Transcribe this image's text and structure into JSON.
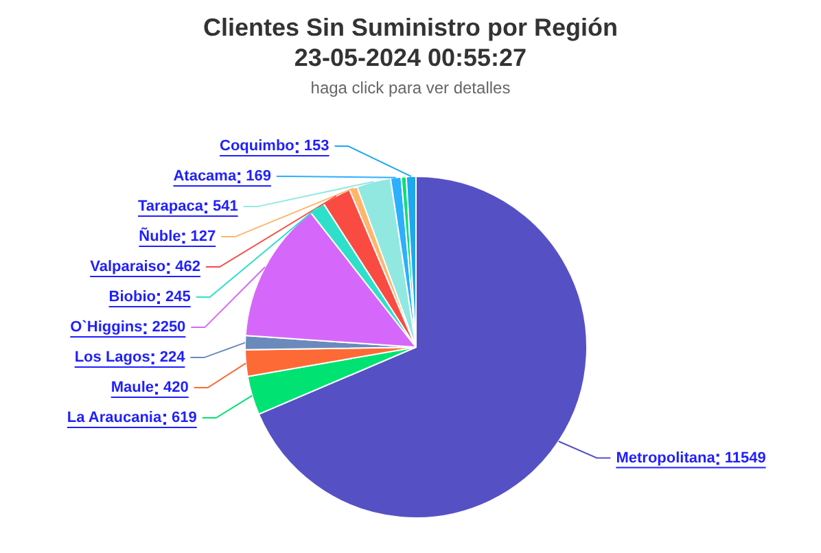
{
  "chart_data": {
    "type": "pie",
    "title": "Clientes Sin Suministro por Región\n23-05-2024 00:55:27",
    "subtitle": "haga click para ver detalles",
    "categories": [
      "Metropolitana",
      "La Araucania",
      "Maule",
      "Los Lagos",
      "O`Higgins",
      "Biobio",
      "Valparaiso",
      "Ñuble",
      "Tarapaca",
      "Atacama",
      null,
      "Coquimbo"
    ],
    "values": [
      11549,
      619,
      420,
      224,
      2250,
      245,
      462,
      127,
      541,
      169,
      80,
      153
    ],
    "colors": [
      "#5551c4",
      "#00e272",
      "#fe6a35",
      "#6b8abc",
      "#d568fb",
      "#2ee0ca",
      "#fa4b42",
      "#feb56a",
      "#91e8e1",
      "#2caffe",
      "#00e272",
      "#1ea8f0"
    ],
    "value_labels": [
      "11549",
      "619",
      "420",
      "224",
      "2250",
      "245",
      "462",
      "127",
      "541",
      "169",
      null,
      "153"
    ]
  }
}
